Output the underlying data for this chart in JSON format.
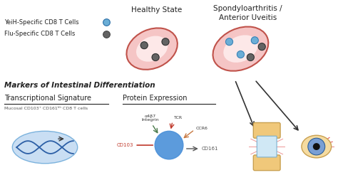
{
  "bg_color": "#ffffff",
  "title_healthy": "Healthy State",
  "title_disease": "Spondyloarthritis /\nAnterior Uveitis",
  "legend_yeih": "YeiH-Specific CD8 T Cells",
  "legend_flu": "Flu-Specific CD8 T Cells",
  "legend_yeih_color": "#6baed6",
  "legend_flu_color": "#636363",
  "markers_title": "Markers of Intestinal Differentiation",
  "transcriptional_label": "Transcriptional Signature",
  "protein_label": "Protein Expression",
  "mucosal_label": "Mucosal CD103⁺ CD161ʰʰ CD8 T cells",
  "dna_ellipse_color": "#b8d4f0",
  "cell_color": "#4a90d9",
  "vessel_color": "#f5c5c5",
  "vessel_border_color": "#c0524a",
  "arrow_color": "#333333",
  "cd103_color": "#c0392b",
  "cd161_color": "#636363",
  "ccr6_color": "#c87941",
  "integrin_color": "#4a7a4a",
  "tcr_color": "#c0392b"
}
